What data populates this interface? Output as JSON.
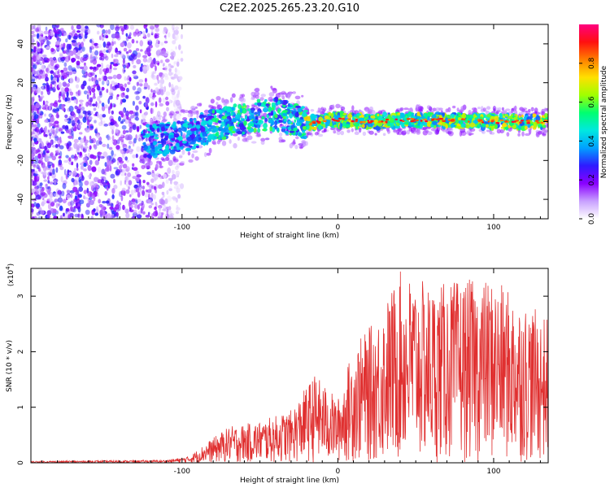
{
  "title": "C2E2.2025.265.23.20.G10",
  "chart_data": [
    {
      "type": "heatmap",
      "name": "spectrogram",
      "xlabel": "Height of straight line (km)",
      "ylabel": "Frequency (Hz)",
      "xlim": [
        -197,
        135
      ],
      "ylim": [
        -50,
        50
      ],
      "x_ticks": [
        -100,
        0,
        100
      ],
      "x_tick_labels": [
        "-100",
        "0",
        "100"
      ],
      "y_ticks": [
        -40,
        -20,
        0,
        20,
        40
      ],
      "y_tick_labels": [
        "-40",
        "-20",
        "0",
        "20",
        "40"
      ],
      "colorbar": {
        "label": "Normalized spectral amplitude",
        "range": [
          0,
          1
        ],
        "ticks": [
          0.0,
          0.2,
          0.4,
          0.6,
          0.8
        ],
        "tick_labels": [
          "0.0",
          "0.2",
          "0.4",
          "0.6",
          "0.8"
        ],
        "colors": [
          "#ffffff",
          "#c8a0ff",
          "#8a00ff",
          "#2f1aff",
          "#00a0ff",
          "#00e8e0",
          "#00ff70",
          "#a0ff00",
          "#ffe000",
          "#ff8000",
          "#ff1010",
          "#ff0080"
        ]
      },
      "features": [
        {
          "description": "scattered noise",
          "x_range": [
            -197,
            -95
          ],
          "frequency_range": [
            -50,
            50
          ],
          "amplitude": 0.1
        },
        {
          "description": "signal track",
          "points": [
            [
              -120,
              -10
            ],
            [
              -100,
              -8
            ],
            [
              -80,
              -2
            ],
            [
              -60,
              2
            ],
            [
              -40,
              4
            ],
            [
              -20,
              -1
            ],
            [
              0,
              1
            ],
            [
              20,
              0
            ],
            [
              60,
              1
            ],
            [
              100,
              0
            ],
            [
              135,
              0
            ]
          ],
          "peak_amplitude": 0.95
        }
      ]
    },
    {
      "type": "line",
      "name": "snr",
      "xlabel": "Height of straight line (km)",
      "ylabel": "SNR (10 * v/v)",
      "y_scale_label": "(x10",
      "y_scale_exponent": "4",
      "xlim": [
        -197,
        135
      ],
      "ylim": [
        0,
        3.5
      ],
      "x_ticks": [
        -100,
        0,
        100
      ],
      "x_tick_labels": [
        "-100",
        "0",
        "100"
      ],
      "y_ticks": [
        0,
        1,
        2,
        3
      ],
      "y_tick_labels": [
        "0",
        "1",
        "2",
        "3"
      ],
      "color": "#e03030",
      "envelope": [
        {
          "x": -197,
          "y": 0.03
        },
        {
          "x": -110,
          "y": 0.05
        },
        {
          "x": -95,
          "y": 0.12
        },
        {
          "x": -85,
          "y": 0.35
        },
        {
          "x": -70,
          "y": 0.65
        },
        {
          "x": -50,
          "y": 0.75
        },
        {
          "x": -30,
          "y": 0.95
        },
        {
          "x": -15,
          "y": 1.6
        },
        {
          "x": 0,
          "y": 1.15
        },
        {
          "x": 10,
          "y": 2.1
        },
        {
          "x": 25,
          "y": 2.6
        },
        {
          "x": 40,
          "y": 3.45
        },
        {
          "x": 60,
          "y": 3.2
        },
        {
          "x": 80,
          "y": 3.3
        },
        {
          "x": 100,
          "y": 3.3
        },
        {
          "x": 120,
          "y": 2.9
        },
        {
          "x": 135,
          "y": 2.6
        }
      ]
    }
  ]
}
